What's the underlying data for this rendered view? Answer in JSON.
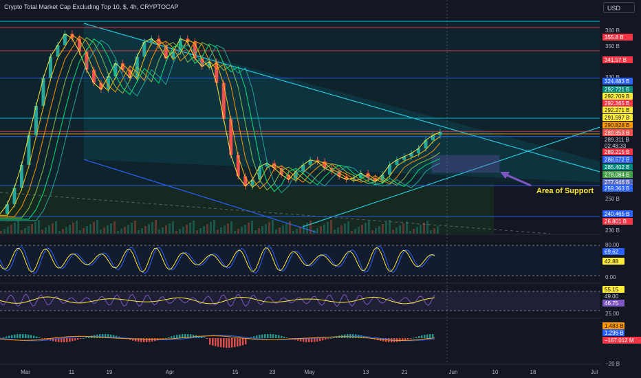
{
  "header": {
    "title": "Crypto Total Market Cap Excluding Top 10, $, 4h, CRYPTOCAP",
    "currency": "USD"
  },
  "annotation": {
    "text": "Area of Support"
  },
  "colors": {
    "background": "#131722",
    "up": "#26a69a",
    "down": "#ef5350",
    "hline_red": "#f23645",
    "hline_blue": "#2962ff",
    "hline_cyan": "#00bcd4",
    "wedge": "#26c6da",
    "support_arrow": "#7e57c2",
    "annotation": "#ffeb3b"
  },
  "chart_data": [
    {
      "type": "line",
      "name": "price",
      "x": [
        "Mar",
        "11",
        "19",
        "Apr",
        "15",
        "23",
        "May",
        "13",
        "21",
        "Jun",
        "10",
        "18",
        "Jul"
      ],
      "ylim": [
        230,
        365
      ],
      "y_ticks": [
        "360 B",
        "350 B",
        "330 B",
        "250 B",
        "230 B"
      ],
      "close_series": [
        242,
        248,
        258,
        272,
        290,
        308,
        325,
        338,
        345,
        352,
        349,
        341,
        330,
        322,
        318,
        326,
        334,
        330,
        325,
        338,
        347,
        349,
        345,
        337,
        341,
        349,
        347,
        337,
        332,
        335,
        322,
        300,
        278,
        265,
        259,
        263,
        271,
        273,
        270,
        266,
        263,
        268,
        272,
        275,
        274,
        270,
        268,
        265,
        263,
        264,
        267,
        264,
        262,
        266,
        272,
        275,
        277,
        279,
        282,
        287,
        290,
        292
      ],
      "horizontal_levels": [
        355.8,
        341.57,
        324.883,
        292.365,
        290.828,
        289.215,
        259.363,
        240.465
      ],
      "price_labels": [
        {
          "text": "355.8 B",
          "color": "#f23645"
        },
        {
          "text": "341.57 B",
          "color": "#f23645"
        },
        {
          "text": "324.883 B",
          "color": "#2962ff"
        },
        {
          "text": "292.721 B",
          "color": "#00897b"
        },
        {
          "text": "292.709 B",
          "color": "#ffeb3b"
        },
        {
          "text": "292.365 B",
          "color": "#f23645"
        },
        {
          "text": "292.271 B",
          "color": "#ffeb3b"
        },
        {
          "text": "291.597 B",
          "color": "#ffeb3b"
        },
        {
          "text": "290.828 B",
          "color": "#ff9800"
        },
        {
          "text": "289.853 B",
          "color": "#ef5350"
        },
        {
          "text": "289.311 B",
          "color": "#131722"
        },
        {
          "text": "02:48:33",
          "color": "#131722"
        },
        {
          "text": "289.215 B",
          "color": "#f23645"
        },
        {
          "text": "288.572 B",
          "color": "#2962ff"
        },
        {
          "text": "285.402 B",
          "color": "#00897b"
        },
        {
          "text": "278.084 B",
          "color": "#43a047"
        },
        {
          "text": "277.946 B",
          "color": "#5c6bc0"
        },
        {
          "text": "259.363 B",
          "color": "#2962ff"
        },
        {
          "text": "240.465 B",
          "color": "#2962ff"
        },
        {
          "text": "26.801 B",
          "color": "#f23645"
        }
      ]
    },
    {
      "type": "line",
      "name": "stochastic",
      "y_ticks": [
        "80.00",
        "0.00"
      ],
      "ylim": [
        0,
        100
      ],
      "values_labels": [
        {
          "text": "69.62",
          "color": "#2962ff"
        },
        {
          "text": "42.88",
          "color": "#ffeb3b"
        }
      ]
    },
    {
      "type": "line",
      "name": "rsi",
      "y_ticks": [
        "25.00"
      ],
      "values_labels": [
        {
          "text": "55.15",
          "color": "#ffeb3b"
        },
        {
          "text": "49.00",
          "color": "#131722"
        },
        {
          "text": "46.75",
          "color": "#7e57c2"
        }
      ]
    },
    {
      "type": "bar",
      "name": "macd",
      "y_ticks": [
        "−20 B"
      ],
      "values_labels": [
        {
          "text": "1.483 B",
          "color": "#ff9800"
        },
        {
          "text": "1.296 B",
          "color": "#2962ff"
        },
        {
          "text": "−167.012 M",
          "color": "#f23645"
        }
      ]
    }
  ]
}
